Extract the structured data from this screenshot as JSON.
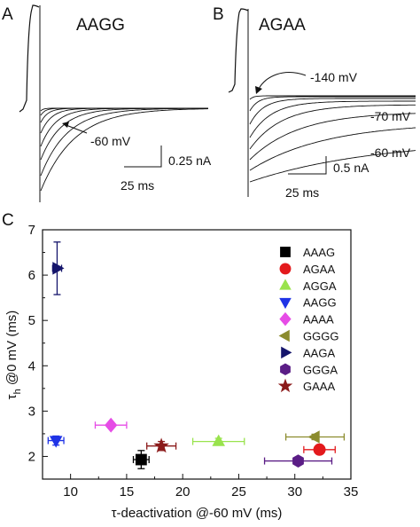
{
  "panels": {
    "a": {
      "label": "A",
      "construct": "AAGG",
      "voltage_label": "-60 mV",
      "scale_current": "0.25 nA",
      "scale_time": "25 ms"
    },
    "b": {
      "label": "B",
      "construct": "AGAA",
      "voltage_top": "-140 mV",
      "voltage_mid": "-70 mV",
      "voltage_bottom": "-60 mV",
      "scale_current": "0.5 nA",
      "scale_time": "25 ms"
    },
    "c": {
      "label": "C"
    }
  },
  "chart_data": {
    "type": "scatter",
    "xlabel": "τ-deactivation @-60 mV (ms)",
    "ylabel_main": "τ",
    "ylabel_sub": "h",
    "ylabel_rest": " @0 mV (ms)",
    "xlim": [
      7.5,
      35
    ],
    "ylim": [
      1.5,
      7
    ],
    "xticks": [
      10,
      15,
      20,
      25,
      30,
      35
    ],
    "yticks": [
      2,
      3,
      4,
      5,
      6,
      7
    ],
    "legend_position": "right",
    "series": [
      {
        "name": "AAAG",
        "marker": "square",
        "color": "#000000",
        "x": 16.3,
        "y": 1.93,
        "xerr": 0.7,
        "yerr": 0.2
      },
      {
        "name": "AGAA",
        "marker": "circle",
        "color": "#e31a1c",
        "x": 32.2,
        "y": 2.15,
        "xerr": 1.4,
        "yerr": 0.05
      },
      {
        "name": "AGGA",
        "marker": "triangle-up",
        "color": "#99e34d",
        "x": 23.2,
        "y": 2.33,
        "xerr": 2.3,
        "yerr": 0.07
      },
      {
        "name": "AAGG",
        "marker": "triangle-down",
        "color": "#1f33e6",
        "x": 8.7,
        "y": 2.35,
        "xerr": 0.7,
        "yerr": 0.1
      },
      {
        "name": "AAAA",
        "marker": "diamond",
        "color": "#e64ce6",
        "x": 13.6,
        "y": 2.69,
        "xerr": 1.4,
        "yerr": 0.05
      },
      {
        "name": "GGGG",
        "marker": "triangle-left",
        "color": "#8c8c2e",
        "x": 31.8,
        "y": 2.43,
        "xerr": 2.6,
        "yerr": 0.06
      },
      {
        "name": "AAGA",
        "marker": "triangle-right",
        "color": "#15156b",
        "x": 8.8,
        "y": 6.15,
        "xerr": 0.4,
        "yerr": 0.58
      },
      {
        "name": "GGGA",
        "marker": "hexagon",
        "color": "#5b1d86",
        "x": 30.3,
        "y": 1.9,
        "xerr": 3.0,
        "yerr": 0.05
      },
      {
        "name": "GAAA",
        "marker": "star",
        "color": "#8b1a1a",
        "x": 18.1,
        "y": 2.23,
        "xerr": 1.3,
        "yerr": 0.1
      }
    ]
  }
}
